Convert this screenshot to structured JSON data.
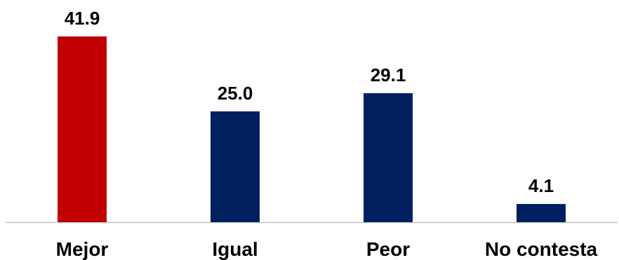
{
  "chart_data": {
    "type": "bar",
    "categories": [
      "Mejor",
      "Igual",
      "Peor",
      "No contesta"
    ],
    "values": [
      41.9,
      25.0,
      29.1,
      4.1
    ],
    "value_labels": [
      "41.9",
      "25.0",
      "29.1",
      "4.1"
    ],
    "title": "",
    "xlabel": "",
    "ylabel": "",
    "ylim": [
      0,
      41.9
    ],
    "grid": false,
    "legend": "none",
    "colors": {
      "highlight": "#C00000",
      "default": "#002060",
      "axis": "#BFBFBF"
    },
    "highlight_index": 0
  }
}
